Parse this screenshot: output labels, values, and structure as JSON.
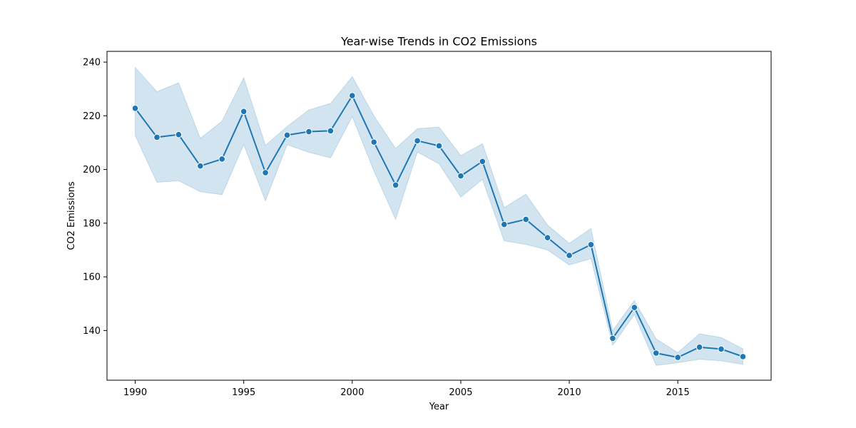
{
  "chart_data": {
    "type": "line",
    "title": "Year-wise Trends in CO2 Emissions",
    "xlabel": "Year",
    "ylabel": "CO2 Emissions",
    "xlim": [
      1988.7,
      2019.3
    ],
    "ylim": [
      121.5,
      244
    ],
    "xticks": [
      1990,
      1995,
      2000,
      2005,
      2010,
      2015
    ],
    "yticks": [
      140,
      160,
      180,
      200,
      220,
      240
    ],
    "grid": false,
    "colors": {
      "line": "#1f77b4",
      "band": "#1f77b4",
      "marker_edge": "#ffffff"
    },
    "series": [
      {
        "x": [
          1990,
          1991,
          1992,
          1993,
          1994,
          1995,
          1996,
          1997,
          1998,
          1999,
          2000,
          2001,
          2002,
          2003,
          2004,
          2005,
          2006,
          2007,
          2008,
          2009,
          2010,
          2011,
          2012,
          2013,
          2014,
          2015,
          2016,
          2017,
          2018
        ],
        "y": [
          222.8,
          212.0,
          213.0,
          201.3,
          203.9,
          221.6,
          198.8,
          212.8,
          214.1,
          214.4,
          227.5,
          210.2,
          194.2,
          210.7,
          208.8,
          197.6,
          203.0,
          179.5,
          181.4,
          174.6,
          168.0,
          172.0,
          137.1,
          148.6,
          131.6,
          130.0,
          133.8,
          133.1,
          130.3
        ],
        "ci_upper": [
          238.0,
          229.0,
          232.3,
          211.6,
          218.0,
          234.2,
          209.0,
          216.0,
          222.2,
          224.6,
          234.6,
          220.0,
          207.8,
          215.2,
          215.8,
          205.2,
          209.6,
          185.8,
          190.8,
          179.3,
          172.5,
          178.0,
          140.0,
          151.2,
          136.9,
          131.8,
          138.8,
          137.4,
          133.2
        ],
        "ci_lower": [
          212.6,
          195.2,
          195.8,
          191.7,
          190.6,
          209.3,
          188.3,
          209.2,
          206.4,
          204.3,
          219.7,
          199.4,
          181.4,
          206.5,
          202.1,
          189.7,
          196.3,
          173.4,
          172.1,
          170.0,
          164.4,
          166.8,
          134.5,
          146.0,
          127.0,
          128.0,
          129.3,
          128.7,
          127.4
        ]
      }
    ]
  }
}
